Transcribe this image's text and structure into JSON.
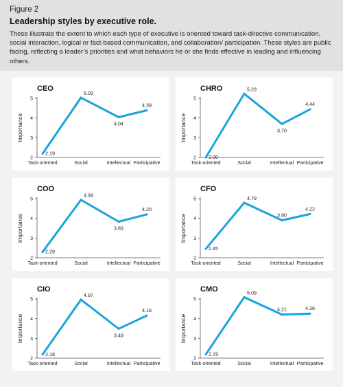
{
  "header": {
    "figure_label": "Figure 2",
    "title": "Leadership styles by executive role.",
    "description": "These illustrate the extent to which each type of executive is oriented toward task-directive communication, social interaction, logical or fact-based communication, and collaboration/ participation. These styles are public facing, reflecting a leader’s priorities and what behaviors he or she finds effective in leading and influencing others."
  },
  "colors": {
    "line": "#1aa3dd",
    "axis": "#555555",
    "header_bg": "#e1e1e1",
    "page_bg": "#f2f2f2",
    "panel_bg": "#ffffff"
  },
  "chart_data": [
    {
      "type": "line",
      "title": "CEO",
      "ylabel": "Importance",
      "ylim": [
        2,
        5
      ],
      "yticks": [
        2,
        3,
        4,
        5
      ],
      "categories": [
        "Task-oriented",
        "Social",
        "Intellectual",
        "Participative"
      ],
      "values": [
        2.19,
        5.03,
        4.04,
        4.39
      ],
      "labels": [
        "2.19",
        "5.03",
        "4.04",
        "4.39"
      ]
    },
    {
      "type": "line",
      "title": "CHRO",
      "ylabel": "Importance",
      "ylim": [
        2,
        5
      ],
      "yticks": [
        2,
        3,
        4,
        5
      ],
      "categories": [
        "Task-oriented",
        "Social",
        "Intellectual",
        "Participative"
      ],
      "values": [
        2.0,
        5.23,
        3.7,
        4.44
      ],
      "labels": [
        "2.00",
        "5.23",
        "3.70",
        "4.44"
      ]
    },
    {
      "type": "line",
      "title": "COO",
      "ylabel": "Importance",
      "ylim": [
        2,
        5
      ],
      "yticks": [
        2,
        3,
        4,
        5
      ],
      "categories": [
        "Task-oriented",
        "Social",
        "Intellectual",
        "Participative"
      ],
      "values": [
        2.29,
        4.94,
        3.83,
        4.2
      ],
      "labels": [
        "2.29",
        "4.94",
        "3.83",
        "4.20"
      ]
    },
    {
      "type": "line",
      "title": "CFO",
      "ylabel": "Importance",
      "ylim": [
        2,
        5
      ],
      "yticks": [
        2,
        3,
        4,
        5
      ],
      "categories": [
        "Task-oriented",
        "Social",
        "Intellectual",
        "Participative"
      ],
      "values": [
        2.45,
        4.79,
        3.9,
        4.22
      ],
      "labels": [
        "2.45",
        "4.79",
        "3.90",
        "4.22"
      ]
    },
    {
      "type": "line",
      "title": "CIO",
      "ylabel": "Importance",
      "ylim": [
        2,
        5
      ],
      "yticks": [
        2,
        3,
        4,
        5
      ],
      "categories": [
        "Task-oriented",
        "Social",
        "Intellectual",
        "Participative"
      ],
      "values": [
        2.18,
        4.97,
        3.49,
        4.16
      ],
      "labels": [
        "2.18",
        "4.97",
        "3.49",
        "4.16"
      ]
    },
    {
      "type": "line",
      "title": "CMO",
      "ylabel": "Importance",
      "ylim": [
        2,
        5
      ],
      "yticks": [
        2,
        3,
        4,
        5
      ],
      "categories": [
        "Task-oriented",
        "Social",
        "Intellectual",
        "Participative"
      ],
      "values": [
        2.19,
        5.09,
        4.21,
        4.26
      ],
      "labels": [
        "2.19",
        "5.09",
        "4.21",
        "4.26"
      ]
    }
  ]
}
